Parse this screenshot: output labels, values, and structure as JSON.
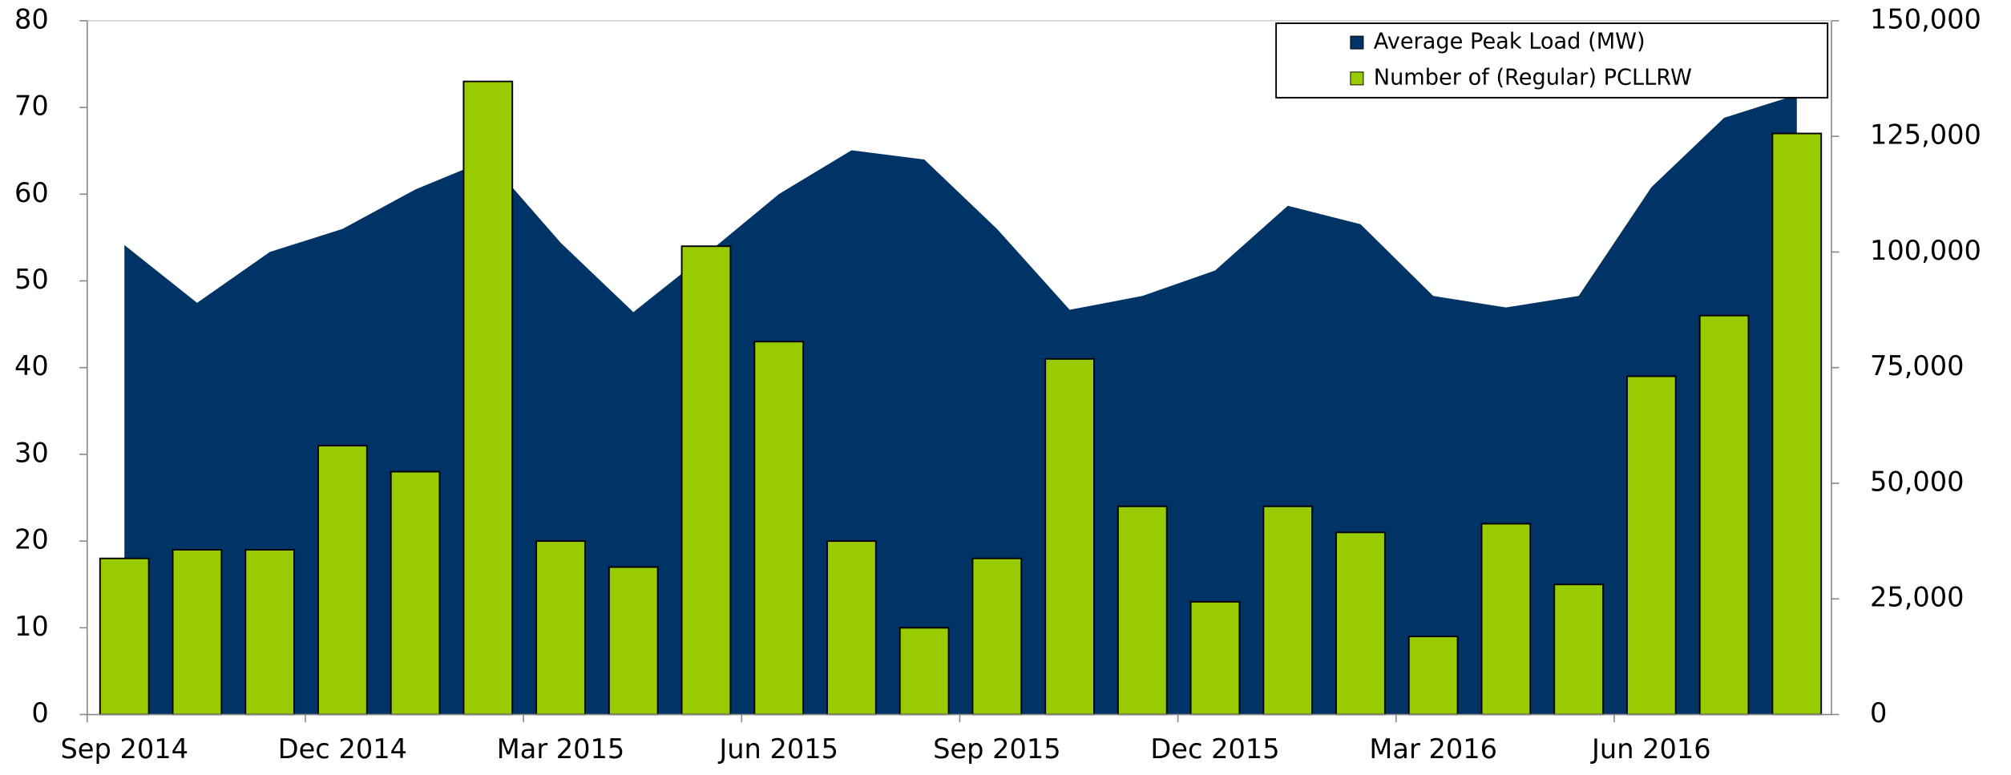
{
  "chart_data": {
    "type": "bar",
    "categories": [
      "Sep 2014",
      null,
      null,
      "Dec 2014",
      null,
      null,
      "Mar 2015",
      null,
      null,
      "Jun 2015",
      null,
      null,
      "Sep 2015",
      null,
      null,
      "Dec 2015",
      null,
      null,
      "Mar 2016",
      null,
      null,
      "Jun 2016",
      null,
      null
    ],
    "series": [
      {
        "name": "Average Peak Load (MW)",
        "type": "area",
        "axis": "y2",
        "color": "#003366",
        "values": [
          101500,
          89000,
          100000,
          105000,
          113500,
          120000,
          102000,
          87000,
          99500,
          112500,
          122000,
          120000,
          105000,
          87500,
          90500,
          96000,
          110000,
          106000,
          90500,
          88000,
          90500,
          114000,
          129000,
          134000
        ]
      },
      {
        "name": "Number of (Regular) PCLLRW",
        "type": "bar",
        "axis": "y",
        "color": "#99cc00",
        "values": [
          18,
          19,
          19,
          31,
          28,
          73,
          20,
          17,
          54,
          43,
          20,
          10,
          18,
          41,
          24,
          13,
          24,
          21,
          9,
          22,
          15,
          39,
          46,
          67
        ]
      }
    ],
    "ylim": [
      0,
      80
    ],
    "yticks": [
      0,
      10,
      20,
      30,
      40,
      50,
      60,
      70,
      80
    ],
    "y2lim": [
      0,
      150000
    ],
    "y2ticks": [
      0,
      {
        "value": 25000,
        "label": "25,000"
      },
      {
        "value": 50000,
        "label": "50,000"
      },
      {
        "value": 75000,
        "label": "75,000"
      },
      {
        "value": 100000,
        "label": "100,000"
      },
      {
        "value": 125000,
        "label": "125,000"
      },
      {
        "value": 150000,
        "label": "150,000"
      }
    ],
    "legend": "top-right"
  }
}
